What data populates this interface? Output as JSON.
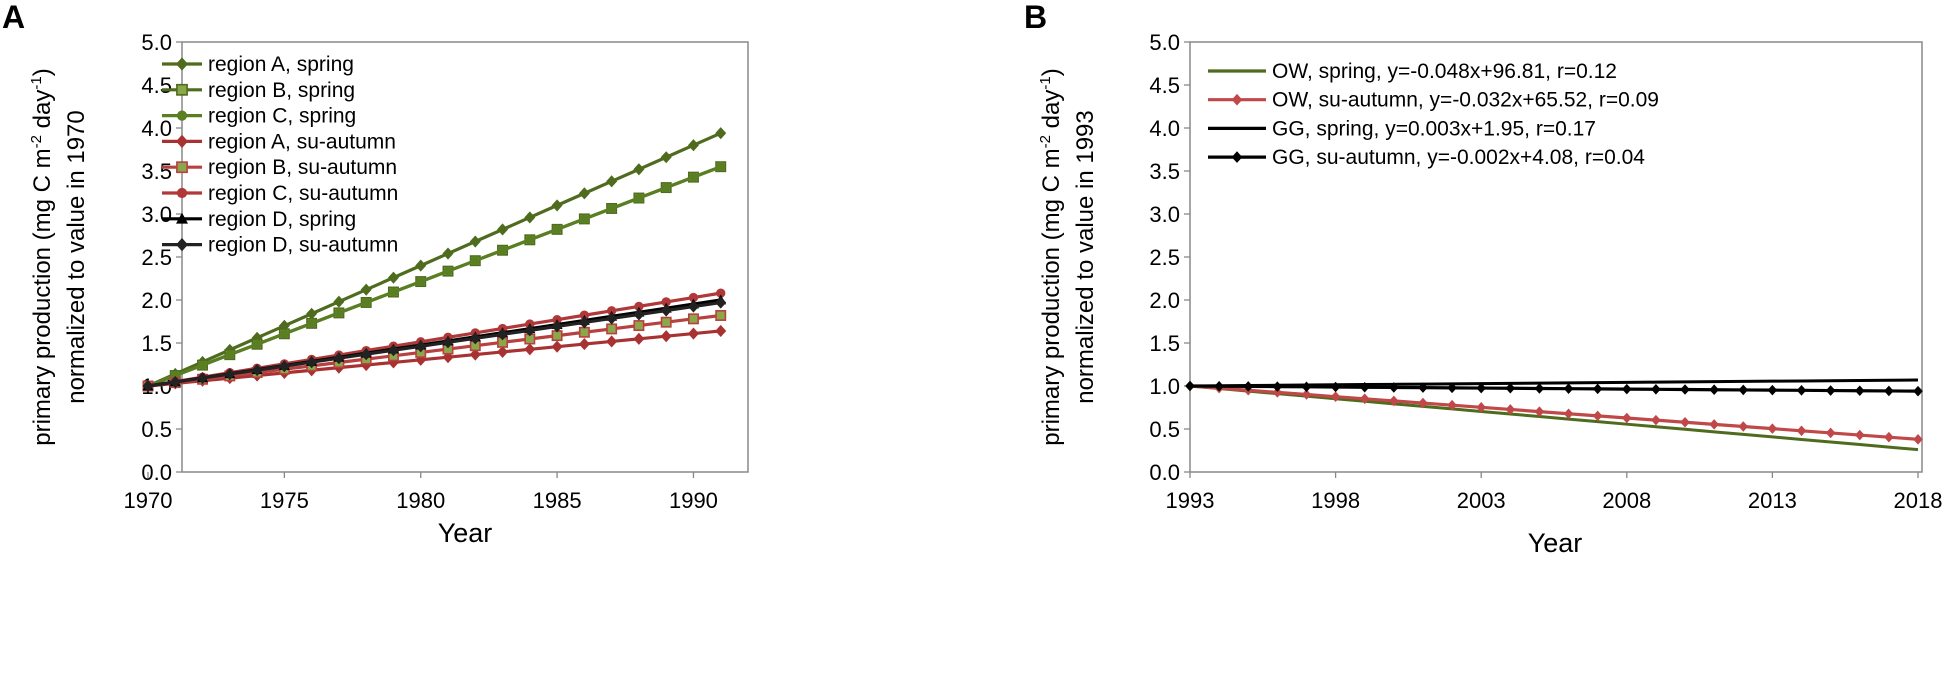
{
  "chart_data": [
    {
      "panel": "A",
      "type": "line",
      "title": "",
      "xlabel": "Year",
      "ylabel_line1": "primary production (mg C m",
      "ylabel_sup1": "-2",
      "ylabel_mid": " day",
      "ylabel_sup2": "-1",
      "ylabel_end": ")",
      "ylabel_line2": "normalized to value in 1970",
      "xlim": [
        1970,
        1992
      ],
      "ylim": [
        0,
        5
      ],
      "xticks": [
        "1970",
        "1975",
        "1980",
        "1985",
        "1990"
      ],
      "xtick_values": [
        1970,
        1975,
        1980,
        1985,
        1990
      ],
      "yticks": [
        "0.0",
        "0.5",
        "1.0",
        "1.5",
        "2.0",
        "2.5",
        "3.0",
        "3.5",
        "4.0",
        "4.5",
        "5.0"
      ],
      "grid": false,
      "legend_position": "top-left",
      "x_start": 1970,
      "x_end": 1991,
      "series": [
        {
          "name": "region A, spring",
          "color": "#4e6b1e",
          "marker": "diamond",
          "start": 1.0,
          "end": 3.94
        },
        {
          "name": "region B, spring",
          "color": "#4e6b1e",
          "marker": "square",
          "start": 1.0,
          "end": 3.55
        },
        {
          "name": "region C, spring",
          "color": "#5a7f22",
          "marker": "circle",
          "start": 1.0,
          "end": 3.55
        },
        {
          "name": "region A, su-autumn",
          "color": "#a83232",
          "marker": "diamond",
          "start": 1.0,
          "end": 1.64
        },
        {
          "name": "region B, su-autumn",
          "color": "#b84040",
          "marker": "square",
          "start": 1.0,
          "end": 1.82
        },
        {
          "name": "region C, su-autumn",
          "color": "#b03838",
          "marker": "circle",
          "start": 1.0,
          "end": 2.08
        },
        {
          "name": "region D, spring",
          "color": "#000000",
          "marker": "triangle",
          "start": 1.0,
          "end": 2.0
        },
        {
          "name": "region D, su-autumn",
          "color": "#222222",
          "marker": "diamond",
          "start": 1.0,
          "end": 1.97
        }
      ]
    },
    {
      "panel": "B",
      "type": "line",
      "title": "",
      "xlabel": "Year",
      "ylabel_line1": "primary production (mg C m",
      "ylabel_sup1": "-2",
      "ylabel_mid": " day",
      "ylabel_sup2": "-1",
      "ylabel_end": ")",
      "ylabel_line2": "normalized to value in 1993",
      "xlim": [
        1993,
        2018
      ],
      "ylim": [
        0,
        5
      ],
      "xticks": [
        "1993",
        "1998",
        "2003",
        "2008",
        "2013",
        "2018"
      ],
      "xtick_values": [
        1993,
        1998,
        2003,
        2008,
        2013,
        2018
      ],
      "yticks": [
        "0.0",
        "0.5",
        "1.0",
        "1.5",
        "2.0",
        "2.5",
        "3.0",
        "3.5",
        "4.0",
        "4.5",
        "5.0"
      ],
      "grid": false,
      "legend_position": "top-left",
      "x_start": 1993,
      "x_end": 2018,
      "series": [
        {
          "name": "OW, spring, y=-0.048x+96.81,  r=0.12",
          "color": "#4e6b1e",
          "marker": "none",
          "start": 1.0,
          "end": 0.26
        },
        {
          "name": "OW, su-autumn, y=-0.032x+65.52, r=0.09",
          "color": "#c04848",
          "marker": "diamond",
          "start": 1.0,
          "end": 0.38
        },
        {
          "name": "GG, spring, y=0.003x+1.95,  r=0.17",
          "color": "#000000",
          "marker": "none",
          "start": 1.0,
          "end": 1.07
        },
        {
          "name": "GG, su-autumn, y=-0.002x+4.08, r=0.04",
          "color": "#000000",
          "marker": "diamond",
          "start": 1.0,
          "end": 0.94
        }
      ]
    }
  ]
}
